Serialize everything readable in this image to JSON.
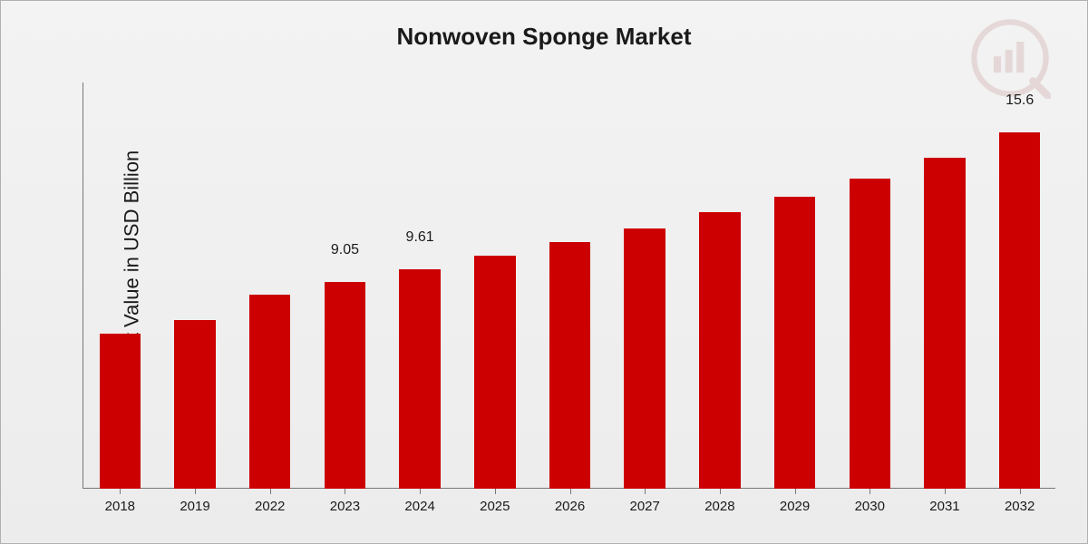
{
  "chart": {
    "type": "bar",
    "title": "Nonwoven Sponge Market",
    "title_fontsize": 26,
    "ylabel": "Market Value in USD Billion",
    "ylabel_fontsize": 22,
    "background_gradient": [
      "#f3f3f3",
      "#ececec"
    ],
    "border_color": "#b0b0b0",
    "axis_color": "#777777",
    "tick_fontsize": 15,
    "bar_color": "#cc0000",
    "bar_width_ratio": 0.55,
    "ylim": [
      0,
      17
    ],
    "categories": [
      "2018",
      "2019",
      "2022",
      "2023",
      "2024",
      "2025",
      "2026",
      "2027",
      "2028",
      "2029",
      "2030",
      "2031",
      "2032"
    ],
    "values": [
      6.8,
      7.4,
      8.5,
      9.05,
      9.61,
      10.2,
      10.8,
      11.4,
      12.1,
      12.8,
      13.6,
      14.5,
      15.6
    ],
    "value_labels": {
      "3": "9.05",
      "4": "9.61",
      "12": "15.6"
    },
    "value_label_fontsize": 16,
    "watermark": {
      "color": "#8a1c1c",
      "opacity": 0.12
    }
  }
}
